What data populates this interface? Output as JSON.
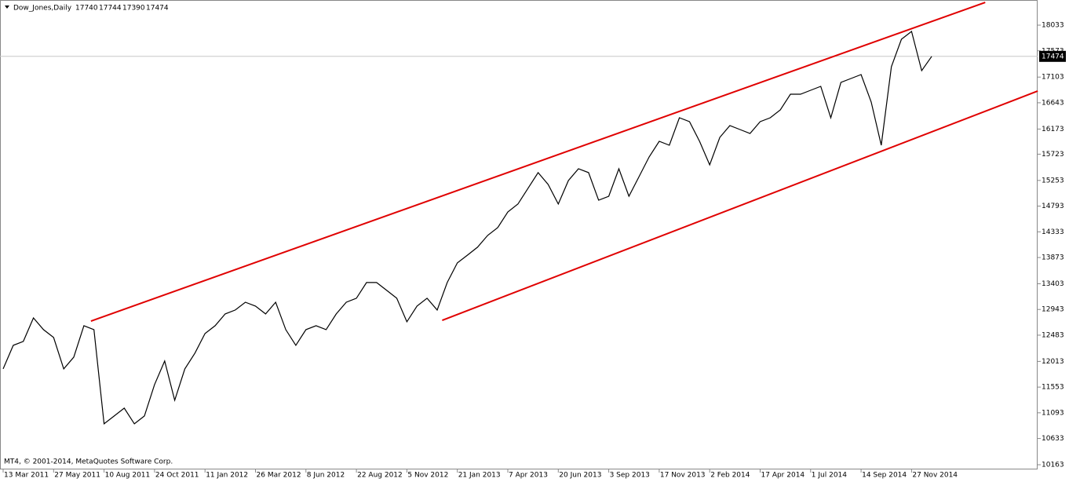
{
  "chart_data": {
    "type": "line",
    "title": "Dow_Jones,Daily",
    "ohlc": [
      17740,
      17744,
      17390,
      17474
    ],
    "footer": "MT4, © 2001-2014, MetaQuotes Software Corp.",
    "last_price": 17474,
    "categories": [
      "13 Mar 2011",
      null,
      null,
      null,
      null,
      "27 May 2011",
      null,
      null,
      null,
      null,
      "10 Aug 2011",
      null,
      null,
      null,
      null,
      "24 Oct 2011",
      null,
      null,
      null,
      null,
      "11 Jan 2012",
      null,
      null,
      null,
      null,
      "26 Mar 2012",
      null,
      null,
      null,
      null,
      "8 Jun 2012",
      null,
      null,
      null,
      null,
      "22 Aug 2012",
      null,
      null,
      null,
      null,
      "5 Nov 2012",
      null,
      null,
      null,
      null,
      "21 Jan 2013",
      null,
      null,
      null,
      null,
      "7 Apr 2013",
      null,
      null,
      null,
      null,
      "20 Jun 2013",
      null,
      null,
      null,
      null,
      "3 Sep 2013",
      null,
      null,
      null,
      null,
      "17 Nov 2013",
      null,
      null,
      null,
      null,
      "2 Feb 2014",
      null,
      null,
      null,
      null,
      "17 Apr 2014",
      null,
      null,
      null,
      null,
      "1 Jul 2014",
      null,
      null,
      null,
      null,
      "14 Sep 2014",
      null,
      null,
      null,
      null,
      "27 Nov 2014",
      null,
      null
    ],
    "series": [
      {
        "name": "Dow_Jones",
        "color": "#000000",
        "values": [
          11879,
          12301,
          12371,
          12792,
          12582,
          12441,
          11879,
          12090,
          12652,
          12582,
          10896,
          11036,
          11177,
          10896,
          11036,
          11598,
          12020,
          11317,
          11879,
          12160,
          12511,
          12652,
          12863,
          12933,
          13073,
          13003,
          12863,
          13073,
          12582,
          12301,
          12582,
          12652,
          12582,
          12863,
          13073,
          13144,
          13425,
          13425,
          13284,
          13144,
          12722,
          13003,
          13144,
          12933,
          13425,
          13776,
          13916,
          14057,
          14268,
          14408,
          14689,
          14830,
          15111,
          15392,
          15181,
          14830,
          15251,
          15462,
          15392,
          14900,
          14970,
          15462,
          14970,
          15321,
          15673,
          15954,
          15883,
          16375,
          16305,
          15954,
          15532,
          16024,
          16235,
          16164,
          16094,
          16305,
          16375,
          16516,
          16797,
          16797,
          16867,
          16937,
          16375,
          17007,
          17078,
          17148,
          16656,
          15883,
          17288,
          17780,
          17921,
          17218,
          17474
        ]
      }
    ],
    "trendlines": [
      {
        "color": "#e00000",
        "start": [
          8.7,
          12735
        ],
        "end": [
          97.3,
          18440
        ]
      },
      {
        "color": "#e00000",
        "start": [
          43.5,
          12749
        ],
        "end": [
          102.5,
          16853
        ]
      }
    ],
    "ylim": [
      10079,
      18483
    ],
    "yticks": [
      10163,
      10633,
      11093,
      11553,
      12013,
      12483,
      12943,
      13403,
      13873,
      14333,
      14793,
      15253,
      15723,
      16173,
      16643,
      17103,
      17573,
      18033
    ]
  }
}
